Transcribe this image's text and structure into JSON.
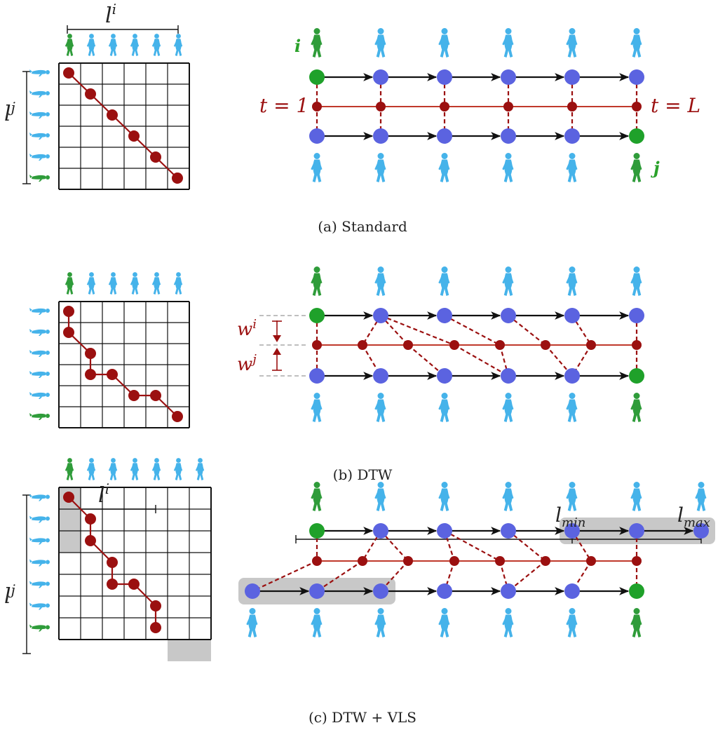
{
  "colors": {
    "red": "#9b1010",
    "red_line": "#c0392b",
    "blue": "#5b63e0",
    "green": "#1fa12a",
    "person_blue": "#45b3ea",
    "person_green": "#2f9c3a",
    "grey": "#c8c8c8",
    "black": "#111111"
  },
  "panels": {
    "a": {
      "caption": "(a) Standard",
      "label_li_base": "l",
      "label_li_sup": "i",
      "label_lj_base": "l",
      "label_lj_sup": "j",
      "label_i": "i",
      "label_j": "j",
      "label_t1": "t = 1",
      "label_tL": "t = L",
      "grid_path": [
        [
          0,
          0
        ],
        [
          1,
          1
        ],
        [
          2,
          2
        ],
        [
          3,
          3
        ],
        [
          4,
          4
        ],
        [
          5,
          5
        ]
      ]
    },
    "b": {
      "caption": "(b) DTW",
      "label_wi_base": "w",
      "label_wi_sup": "i",
      "label_wj_base": "w",
      "label_wj_sup": "j",
      "grid_path": [
        [
          0,
          0
        ],
        [
          0,
          1
        ],
        [
          1,
          2
        ],
        [
          1,
          3
        ],
        [
          2,
          3
        ],
        [
          3,
          4
        ],
        [
          4,
          4
        ],
        [
          5,
          5
        ]
      ]
    },
    "c": {
      "caption": "(c) DTW + VLS",
      "label_li_base": "l",
      "label_li_sup": "i",
      "label_lj_base": "l",
      "label_lj_sup": "j",
      "label_lmin_base": "l",
      "label_lmin_sub": "min",
      "label_lmax_base": "l",
      "label_lmax_sub": "max",
      "grid_path": [
        [
          0,
          0
        ],
        [
          1,
          1
        ],
        [
          1,
          2
        ],
        [
          2,
          3
        ],
        [
          2,
          4
        ],
        [
          3,
          4
        ],
        [
          4,
          5
        ],
        [
          4,
          6
        ]
      ]
    }
  },
  "icons": {
    "person_walk": "walking-person-icon",
    "person_lying": "lying-person-icon"
  }
}
